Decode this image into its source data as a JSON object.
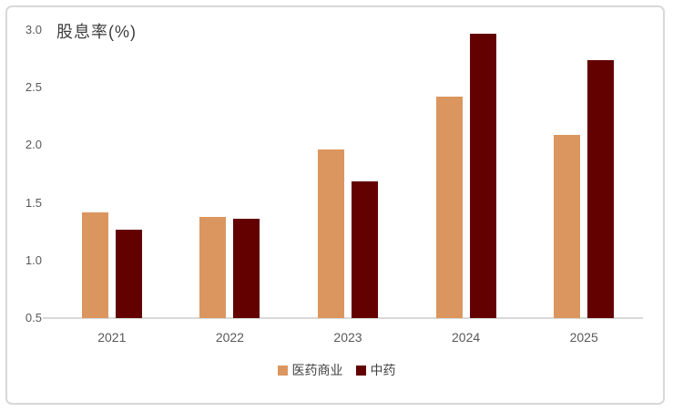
{
  "chart_data": {
    "type": "bar",
    "title": "股息率(%)",
    "categories": [
      "2021",
      "2022",
      "2023",
      "2024",
      "2025"
    ],
    "series": [
      {
        "name": "医药商业",
        "color": "#DB965F",
        "values": [
          1.42,
          1.38,
          1.96,
          2.42,
          2.09
        ]
      },
      {
        "name": "中药",
        "color": "#630000",
        "values": [
          1.27,
          1.36,
          1.69,
          2.97,
          2.74
        ]
      }
    ],
    "xlabel": "",
    "ylabel": "",
    "ylim": [
      0.5,
      3.0
    ],
    "yticks": [
      "0.5",
      "1.0",
      "1.5",
      "2.0",
      "2.5",
      "3.0"
    ],
    "grid": false,
    "legend_position": "bottom"
  },
  "colors": {
    "axis_line": "#d9d9d9",
    "tick_text": "#595959",
    "title_text": "#3d3d3d",
    "card_border": "#d8d8d8"
  }
}
